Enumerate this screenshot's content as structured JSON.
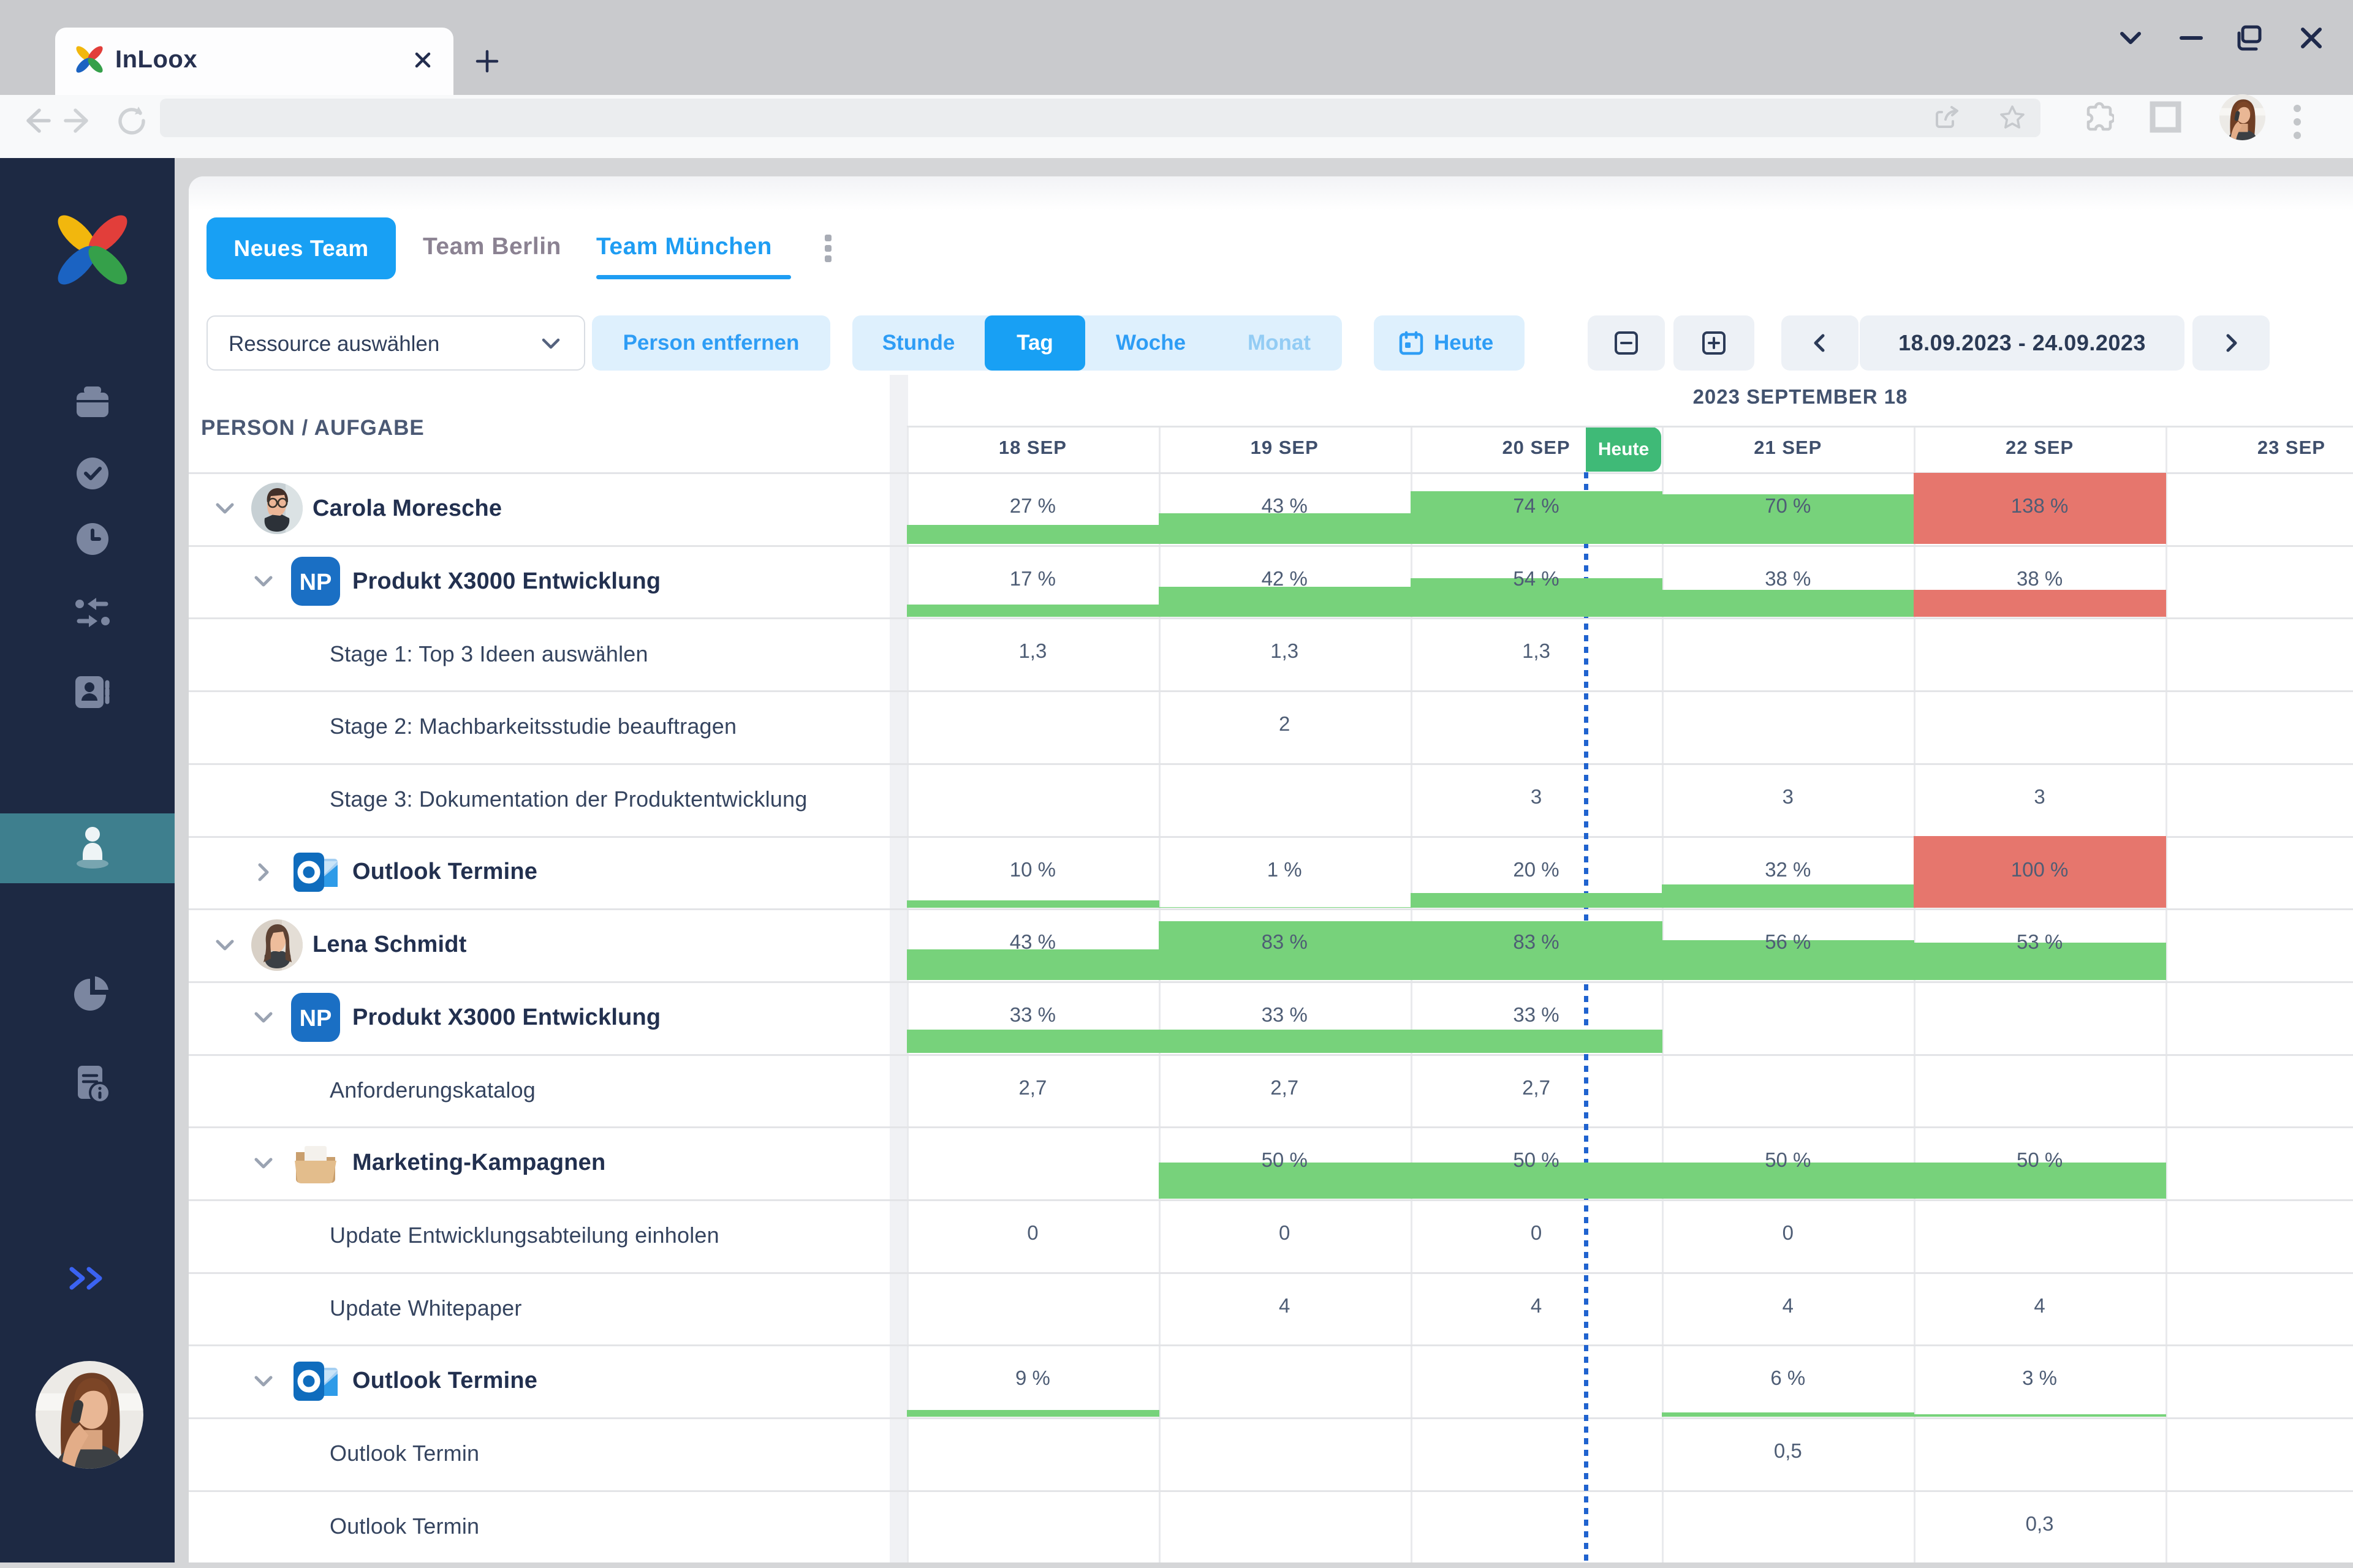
{
  "browser": {
    "tab_title": "InLoox",
    "address_bar_value": "",
    "tab_icons": [
      "inloox-favicon",
      "close-tab",
      "new-tab"
    ],
    "nav_icons": [
      "back",
      "forward",
      "reload"
    ],
    "address_icons": [
      "share",
      "bookmark-star"
    ],
    "right_icons": [
      "extensions-puzzle",
      "window-frame",
      "profile-avatar",
      "menu-kebab"
    ],
    "window_controls": [
      "collapse-chevron",
      "minimize",
      "duplicate-window",
      "close-window"
    ]
  },
  "sidebar": {
    "logo": "inloox-logo",
    "items": [
      {
        "icon": "projects-box",
        "active": false
      },
      {
        "icon": "tasks-check",
        "active": false
      },
      {
        "icon": "time-clock",
        "active": false
      },
      {
        "icon": "workflows-arrows",
        "active": false
      },
      {
        "icon": "contacts-card",
        "active": false
      },
      {
        "icon": "resources-person",
        "active": true
      },
      {
        "icon": "reports-pie",
        "active": false
      },
      {
        "icon": "documents-info",
        "active": false
      }
    ],
    "expand_icon": "double-chevron-right",
    "user_avatar": "woman-on-phone"
  },
  "app": {
    "new_team_button": "Neues Team",
    "team_tabs": [
      {
        "label": "Team Berlin",
        "active": false
      },
      {
        "label": "Team München",
        "active": true
      }
    ],
    "tab_menu_icon": "kebab-vertical",
    "toolbar": {
      "resource_select": {
        "label": "Ressource auswählen",
        "icon": "chevron-down"
      },
      "remove_person": "Person entfernen",
      "scale_options": [
        {
          "label": "Stunde",
          "state": "normal"
        },
        {
          "label": "Tag",
          "state": "active"
        },
        {
          "label": "Woche",
          "state": "normal"
        },
        {
          "label": "Monat",
          "state": "disabled"
        }
      ],
      "today_button": {
        "label": "Heute",
        "icon": "calendar"
      },
      "zoom_out_icon": "minus-square",
      "zoom_in_icon": "plus-square",
      "prev_icon": "chevron-left",
      "next_icon": "chevron-right",
      "date_range": "18.09.2023 - 24.09.2023"
    },
    "grid": {
      "left_header": "PERSON / AUFGABE",
      "month_label": "2023 SEPTEMBER 18",
      "today_badge": "Heute",
      "days": [
        "18 SEP",
        "19 SEP",
        "20 SEP",
        "21 SEP",
        "22 SEP",
        "23 SEP"
      ],
      "rows": [
        {
          "type": "person",
          "label": "Carola Moresche",
          "chevron": "down",
          "avatar": "carola",
          "cells": [
            {
              "text": "27 %",
              "bar": 27
            },
            {
              "text": "43 %",
              "bar": 43
            },
            {
              "text": "74 %",
              "bar": 74
            },
            {
              "text": "70 %",
              "bar": 70
            },
            {
              "text": "138 %",
              "bar": 138,
              "over": true
            },
            {}
          ]
        },
        {
          "type": "project",
          "label": "Produkt X3000 Entwicklung",
          "chevron": "down",
          "icon": "np",
          "cells": [
            {
              "text": "17 %",
              "bar": 17
            },
            {
              "text": "42 %",
              "bar": 42
            },
            {
              "text": "54 %",
              "bar": 54
            },
            {
              "text": "38 %",
              "bar": 38
            },
            {
              "text": "38 %",
              "bar": 38,
              "over": true
            },
            {}
          ]
        },
        {
          "type": "task",
          "label": "Stage 1: Top 3 Ideen auswählen",
          "cells": [
            {
              "text": "1,3"
            },
            {
              "text": "1,3"
            },
            {
              "text": "1,3"
            },
            {},
            {},
            {}
          ]
        },
        {
          "type": "task",
          "label": "Stage 2: Machbarkeitsstudie beauftragen",
          "cells": [
            {},
            {
              "text": "2"
            },
            {},
            {},
            {},
            {}
          ]
        },
        {
          "type": "task",
          "label": "Stage 3: Dokumentation der Produktentwicklung",
          "cells": [
            {},
            {},
            {
              "text": "3"
            },
            {
              "text": "3"
            },
            {
              "text": "3"
            },
            {}
          ]
        },
        {
          "type": "project",
          "label": "Outlook Termine",
          "chevron": "right",
          "icon": "outlook",
          "cells": [
            {
              "text": "10 %",
              "bar": 10
            },
            {
              "text": "1 %",
              "bar": 1
            },
            {
              "text": "20 %",
              "bar": 20
            },
            {
              "text": "32 %",
              "bar": 32
            },
            {
              "text": "100 %",
              "bar": 100,
              "over": true
            },
            {}
          ]
        },
        {
          "type": "person",
          "label": "Lena Schmidt",
          "chevron": "down",
          "avatar": "lena",
          "cells": [
            {
              "text": "43 %",
              "bar": 43
            },
            {
              "text": "83 %",
              "bar": 83
            },
            {
              "text": "83 %",
              "bar": 83
            },
            {
              "text": "56 %",
              "bar": 56
            },
            {
              "text": "53 %",
              "bar": 53
            },
            {}
          ]
        },
        {
          "type": "project",
          "label": "Produkt X3000 Entwicklung",
          "chevron": "down",
          "icon": "np",
          "cells": [
            {
              "text": "33 %",
              "bar": 33
            },
            {
              "text": "33 %",
              "bar": 33
            },
            {
              "text": "33 %",
              "bar": 33
            },
            {},
            {},
            {}
          ]
        },
        {
          "type": "task",
          "label": "Anforderungskatalog",
          "cells": [
            {
              "text": "2,7"
            },
            {
              "text": "2,7"
            },
            {
              "text": "2,7"
            },
            {},
            {},
            {}
          ]
        },
        {
          "type": "project",
          "label": "Marketing-Kampagnen",
          "chevron": "down",
          "icon": "folder",
          "cells": [
            {},
            {
              "text": "50 %",
              "bar": 50
            },
            {
              "text": "50 %",
              "bar": 50
            },
            {
              "text": "50 %",
              "bar": 50
            },
            {
              "text": "50 %",
              "bar": 50
            },
            {}
          ]
        },
        {
          "type": "task",
          "label": "Update Entwicklungsabteilung einholen",
          "cells": [
            {
              "text": "0"
            },
            {
              "text": "0"
            },
            {
              "text": "0"
            },
            {
              "text": "0"
            },
            {},
            {}
          ]
        },
        {
          "type": "task",
          "label": "Update Whitepaper",
          "cells": [
            {},
            {
              "text": "4"
            },
            {
              "text": "4"
            },
            {
              "text": "4"
            },
            {
              "text": "4"
            },
            {}
          ]
        },
        {
          "type": "project",
          "label": "Outlook Termine",
          "chevron": "down",
          "icon": "outlook",
          "cells": [
            {
              "text": "9 %",
              "bar": 9
            },
            {},
            {},
            {
              "text": "6 %",
              "bar": 6
            },
            {
              "text": "3 %",
              "bar": 3
            },
            {}
          ]
        },
        {
          "type": "task",
          "label": "Outlook Termin",
          "cells": [
            {},
            {},
            {},
            {
              "text": "0,5"
            },
            {},
            {}
          ]
        },
        {
          "type": "task",
          "label": "Outlook Termin",
          "cells": [
            {},
            {},
            {},
            {},
            {
              "text": "0,3"
            },
            {}
          ]
        }
      ]
    }
  },
  "colors": {
    "accent_blue": "#18a0f4",
    "light_blue_button": "#def0fd",
    "bar_ok_green": "#77d27b",
    "bar_over_red": "#e6766d",
    "today_badge_green": "#3fba77",
    "today_line_blue": "#2063cf",
    "sidebar_navy": "#1d2943",
    "active_item_teal": "#3e7f8e"
  }
}
